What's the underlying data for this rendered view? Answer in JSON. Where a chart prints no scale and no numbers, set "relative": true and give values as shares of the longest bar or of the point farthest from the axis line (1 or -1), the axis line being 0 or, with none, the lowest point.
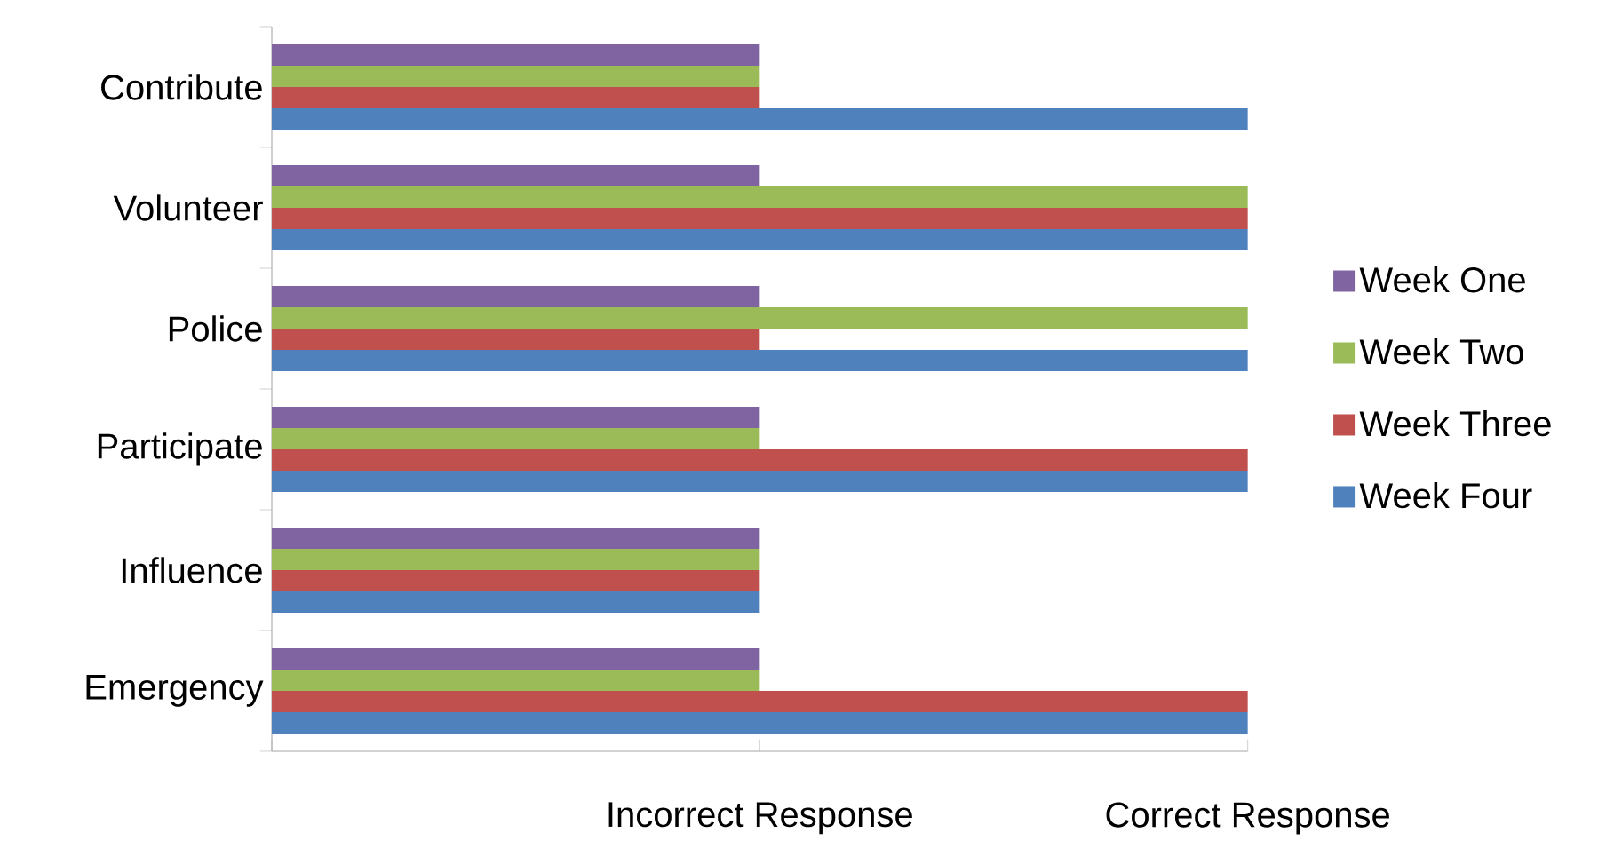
{
  "chart_data": {
    "type": "bar",
    "orientation": "horizontal",
    "relative": true,
    "categories": [
      "Contribute",
      "Volunteer",
      "Police",
      "Participate",
      "Influence",
      "Emergency"
    ],
    "series": [
      {
        "name": "Week One",
        "color": "#8064a2",
        "values": [
          0.5,
          0.5,
          0.5,
          0.5,
          0.5,
          0.5
        ]
      },
      {
        "name": "Week Two",
        "color": "#9bbb59",
        "values": [
          0.5,
          1,
          1,
          0.5,
          0.5,
          0.5
        ]
      },
      {
        "name": "Week Three",
        "color": "#c0504d",
        "values": [
          0.5,
          1,
          0.5,
          1,
          0.5,
          1
        ]
      },
      {
        "name": "Week Four",
        "color": "#4f81bd",
        "values": [
          1,
          1,
          1,
          1,
          0.5,
          1
        ]
      }
    ],
    "annotations": [
      "Incorrect Response",
      "Correct Response"
    ],
    "grid": false,
    "legend": "right"
  }
}
